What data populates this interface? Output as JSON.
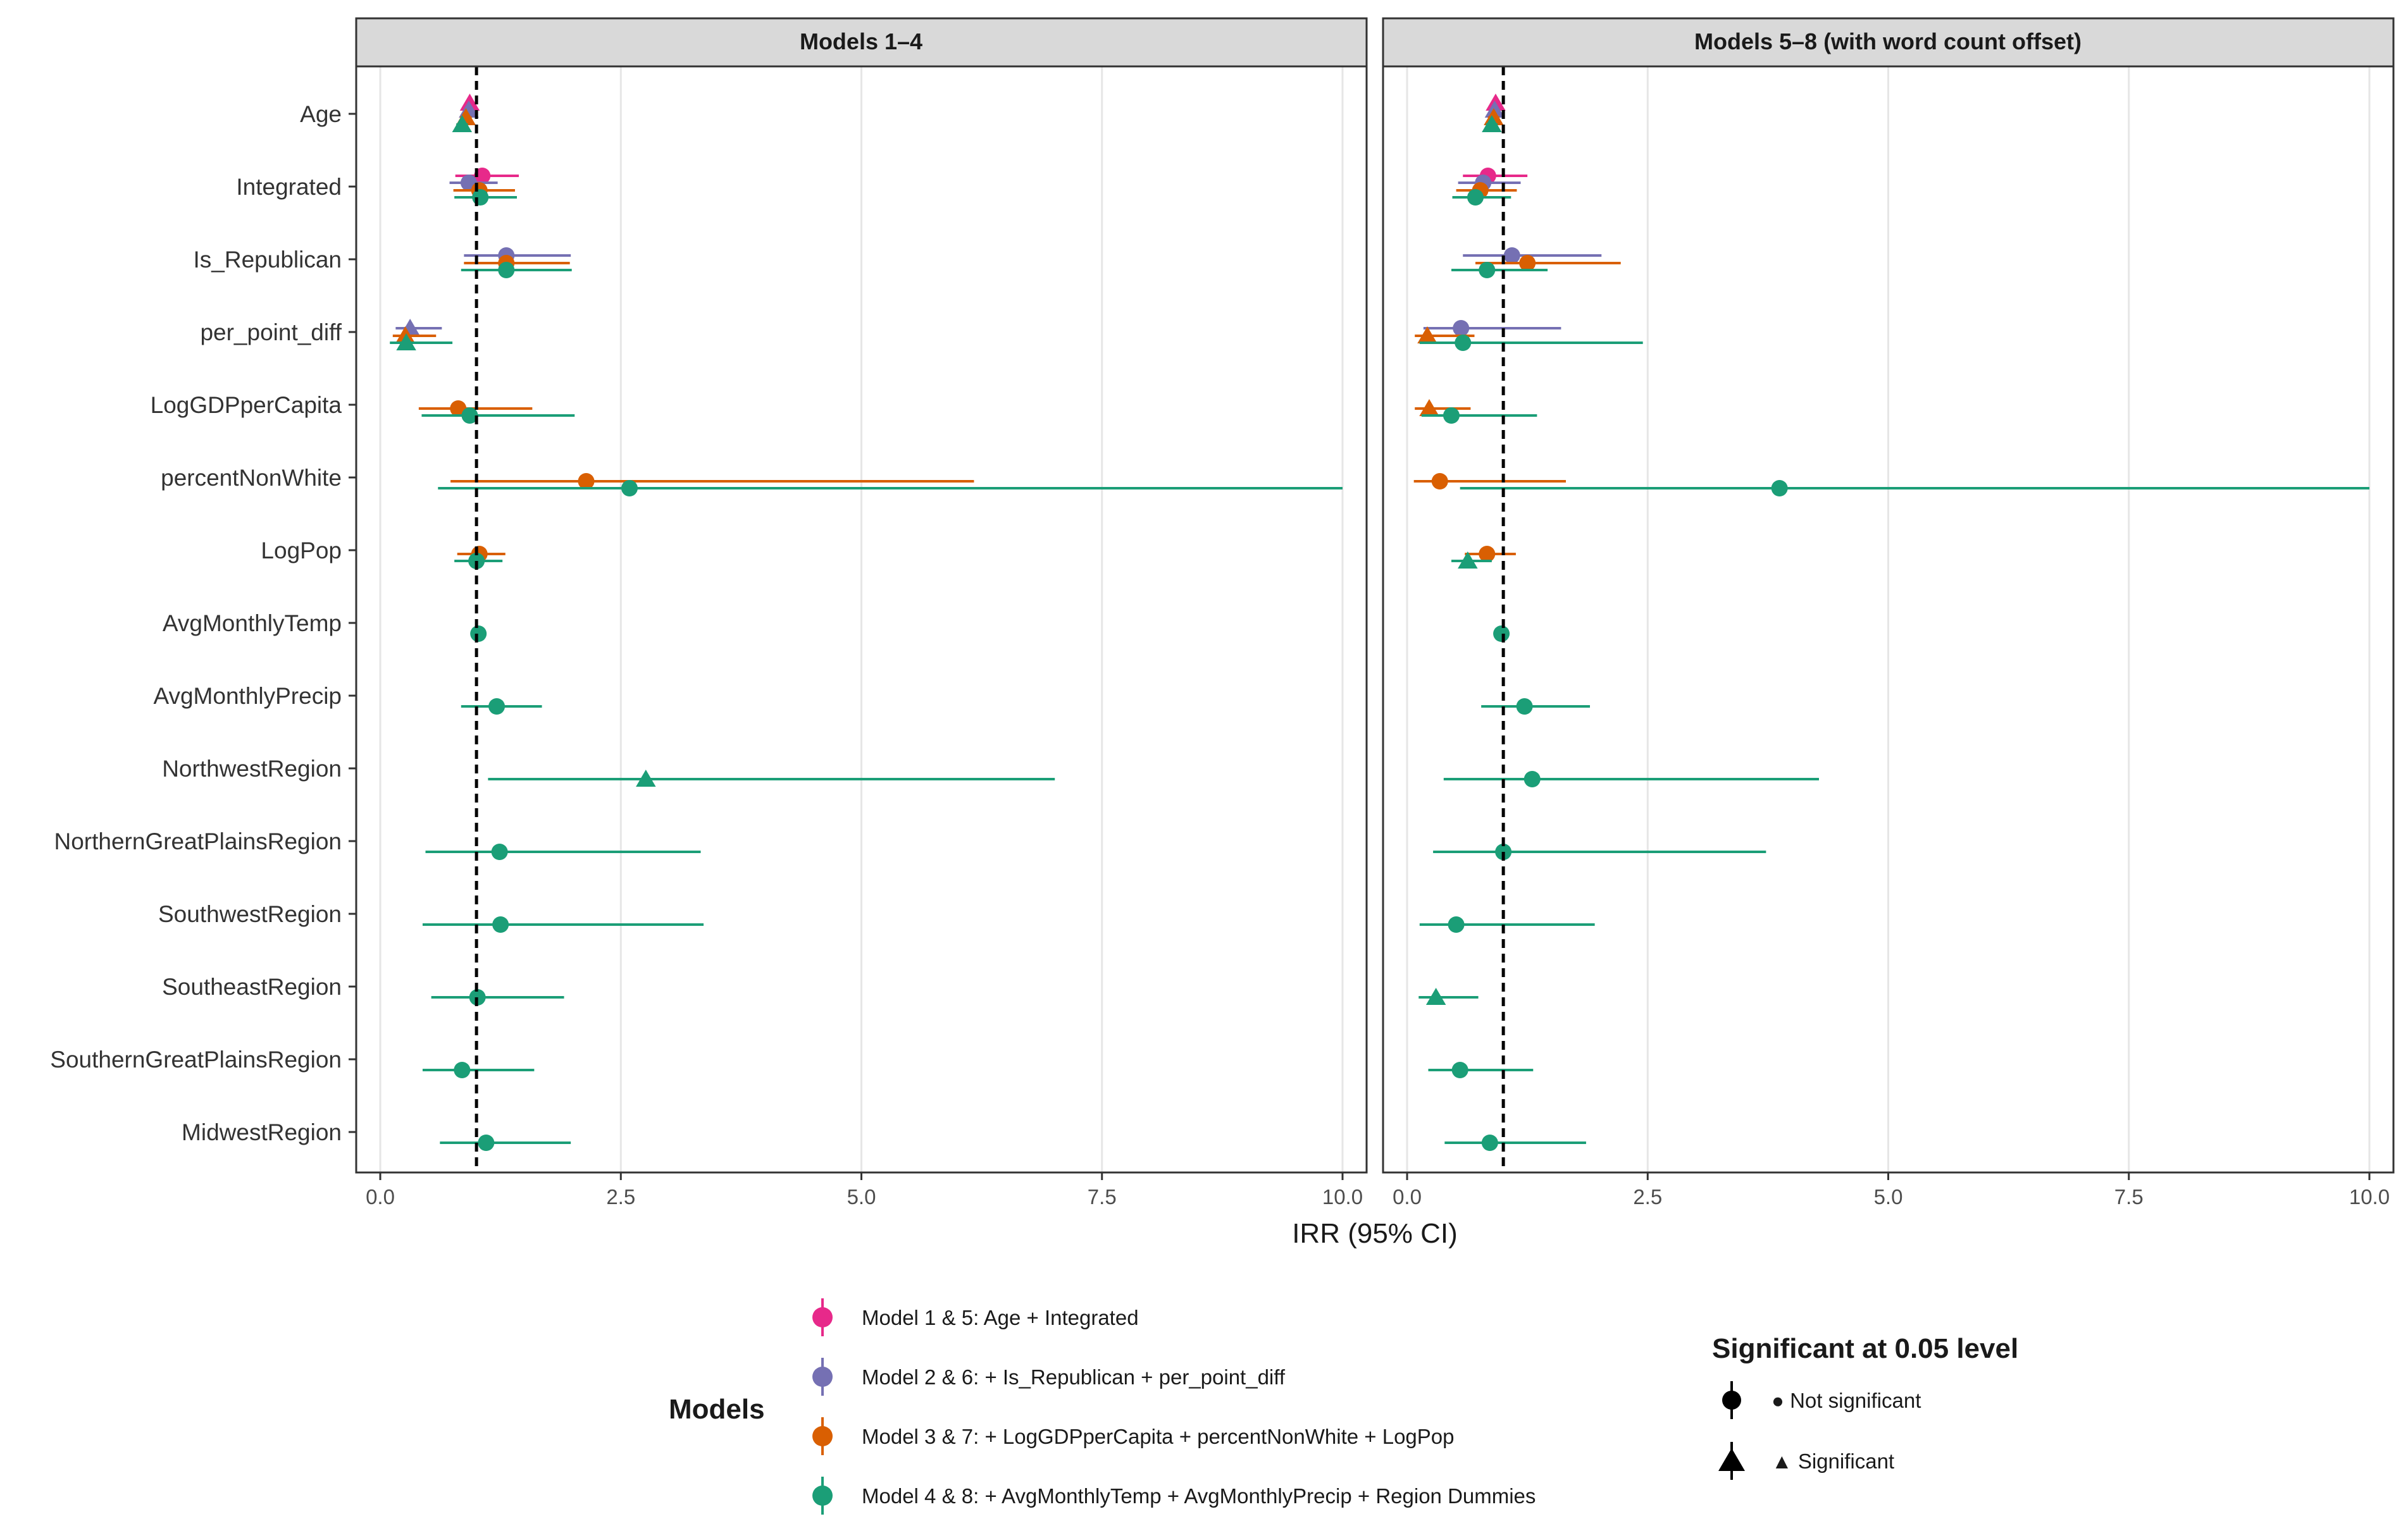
{
  "chart_data": {
    "type": "forest",
    "xlabel": "IRR (95% CI)",
    "xlim": [
      -0.25,
      10.25
    ],
    "x_ticks": [
      0.0,
      2.5,
      5.0,
      7.5,
      10.0
    ],
    "x_tick_labels": [
      "0.0",
      "2.5",
      "5.0",
      "7.5",
      "10.0"
    ],
    "reference_line": 1.0,
    "grid": "vertical major lines",
    "categories": [
      "Age",
      "Integrated",
      "Is_Republican",
      "per_point_diff",
      "LogGDPperCapita",
      "percentNonWhite",
      "LogPop",
      "AvgMonthlyTemp",
      "AvgMonthlyPrecip",
      "NorthwestRegion",
      "NorthernGreatPlainsRegion",
      "SouthwestRegion",
      "SoutheastRegion",
      "SouthernGreatPlainsRegion",
      "MidwestRegion"
    ],
    "facets": [
      {
        "title": "Models 1–4",
        "points": [
          {
            "var": "Age",
            "model": 0,
            "est": 0.93,
            "lo": 0.88,
            "hi": 0.98,
            "sig": true
          },
          {
            "var": "Age",
            "model": 1,
            "est": 0.92,
            "lo": 0.87,
            "hi": 0.97,
            "sig": true
          },
          {
            "var": "Age",
            "model": 2,
            "est": 0.89,
            "lo": 0.83,
            "hi": 0.95,
            "sig": true
          },
          {
            "var": "Age",
            "model": 3,
            "est": 0.85,
            "lo": 0.79,
            "hi": 0.91,
            "sig": true
          },
          {
            "var": "Integrated",
            "model": 0,
            "est": 1.06,
            "lo": 0.78,
            "hi": 1.44,
            "sig": false
          },
          {
            "var": "Integrated",
            "model": 1,
            "est": 0.92,
            "lo": 0.72,
            "hi": 1.22,
            "sig": false
          },
          {
            "var": "Integrated",
            "model": 2,
            "est": 1.03,
            "lo": 0.76,
            "hi": 1.4,
            "sig": false
          },
          {
            "var": "Integrated",
            "model": 3,
            "est": 1.04,
            "lo": 0.77,
            "hi": 1.42,
            "sig": false
          },
          {
            "var": "Is_Republican",
            "model": 1,
            "est": 1.31,
            "lo": 0.87,
            "hi": 1.98,
            "sig": false
          },
          {
            "var": "Is_Republican",
            "model": 2,
            "est": 1.31,
            "lo": 0.87,
            "hi": 1.97,
            "sig": false
          },
          {
            "var": "Is_Republican",
            "model": 3,
            "est": 1.31,
            "lo": 0.84,
            "hi": 1.99,
            "sig": false
          },
          {
            "var": "per_point_diff",
            "model": 1,
            "est": 0.31,
            "lo": 0.16,
            "hi": 0.64,
            "sig": true
          },
          {
            "var": "per_point_diff",
            "model": 2,
            "est": 0.26,
            "lo": 0.13,
            "hi": 0.58,
            "sig": true
          },
          {
            "var": "per_point_diff",
            "model": 3,
            "est": 0.27,
            "lo": 0.1,
            "hi": 0.75,
            "sig": true
          },
          {
            "var": "LogGDPperCapita",
            "model": 2,
            "est": 0.81,
            "lo": 0.4,
            "hi": 1.58,
            "sig": false
          },
          {
            "var": "LogGDPperCapita",
            "model": 3,
            "est": 0.93,
            "lo": 0.43,
            "hi": 2.02,
            "sig": false
          },
          {
            "var": "percentNonWhite",
            "model": 2,
            "est": 2.14,
            "lo": 0.73,
            "hi": 6.17,
            "sig": false
          },
          {
            "var": "percentNonWhite",
            "model": 3,
            "est": 2.59,
            "lo": 0.6,
            "hi": 10.0,
            "sig": false
          },
          {
            "var": "LogPop",
            "model": 2,
            "est": 1.03,
            "lo": 0.8,
            "hi": 1.3,
            "sig": false
          },
          {
            "var": "LogPop",
            "model": 3,
            "est": 1.0,
            "lo": 0.77,
            "hi": 1.27,
            "sig": false
          },
          {
            "var": "AvgMonthlyTemp",
            "model": 3,
            "est": 1.02,
            "lo": 0.96,
            "hi": 1.08,
            "sig": false
          },
          {
            "var": "AvgMonthlyPrecip",
            "model": 3,
            "est": 1.21,
            "lo": 0.84,
            "hi": 1.68,
            "sig": false
          },
          {
            "var": "NorthwestRegion",
            "model": 3,
            "est": 2.76,
            "lo": 1.12,
            "hi": 7.01,
            "sig": true
          },
          {
            "var": "NorthernGreatPlainsRegion",
            "model": 3,
            "est": 1.24,
            "lo": 0.47,
            "hi": 3.33,
            "sig": false
          },
          {
            "var": "SouthwestRegion",
            "model": 3,
            "est": 1.25,
            "lo": 0.44,
            "hi": 3.36,
            "sig": false
          },
          {
            "var": "SoutheastRegion",
            "model": 3,
            "est": 1.01,
            "lo": 0.53,
            "hi": 1.91,
            "sig": false
          },
          {
            "var": "SouthernGreatPlainsRegion",
            "model": 3,
            "est": 0.85,
            "lo": 0.44,
            "hi": 1.6,
            "sig": false
          },
          {
            "var": "MidwestRegion",
            "model": 3,
            "est": 1.1,
            "lo": 0.62,
            "hi": 1.98,
            "sig": false
          }
        ]
      },
      {
        "title": "Models 5–8 (with word count offset)",
        "points": [
          {
            "var": "Age",
            "model": 0,
            "est": 0.92,
            "lo": 0.87,
            "hi": 0.97,
            "sig": true
          },
          {
            "var": "Age",
            "model": 1,
            "est": 0.91,
            "lo": 0.86,
            "hi": 0.96,
            "sig": true
          },
          {
            "var": "Age",
            "model": 2,
            "est": 0.9,
            "lo": 0.84,
            "hi": 0.96,
            "sig": true
          },
          {
            "var": "Age",
            "model": 3,
            "est": 0.88,
            "lo": 0.82,
            "hi": 0.94,
            "sig": true
          },
          {
            "var": "Integrated",
            "model": 0,
            "est": 0.84,
            "lo": 0.58,
            "hi": 1.25,
            "sig": false
          },
          {
            "var": "Integrated",
            "model": 1,
            "est": 0.79,
            "lo": 0.53,
            "hi": 1.18,
            "sig": false
          },
          {
            "var": "Integrated",
            "model": 2,
            "est": 0.76,
            "lo": 0.51,
            "hi": 1.14,
            "sig": false
          },
          {
            "var": "Integrated",
            "model": 3,
            "est": 0.71,
            "lo": 0.47,
            "hi": 1.08,
            "sig": false
          },
          {
            "var": "Is_Republican",
            "model": 1,
            "est": 1.09,
            "lo": 0.58,
            "hi": 2.02,
            "sig": false
          },
          {
            "var": "Is_Republican",
            "model": 2,
            "est": 1.25,
            "lo": 0.71,
            "hi": 2.22,
            "sig": false
          },
          {
            "var": "Is_Republican",
            "model": 3,
            "est": 0.83,
            "lo": 0.46,
            "hi": 1.46,
            "sig": false
          },
          {
            "var": "per_point_diff",
            "model": 1,
            "est": 0.56,
            "lo": 0.17,
            "hi": 1.6,
            "sig": false
          },
          {
            "var": "per_point_diff",
            "model": 2,
            "est": 0.21,
            "lo": 0.08,
            "hi": 0.7,
            "sig": true
          },
          {
            "var": "per_point_diff",
            "model": 3,
            "est": 0.58,
            "lo": 0.13,
            "hi": 2.45,
            "sig": false
          },
          {
            "var": "LogGDPperCapita",
            "model": 2,
            "est": 0.23,
            "lo": 0.08,
            "hi": 0.66,
            "sig": true
          },
          {
            "var": "LogGDPperCapita",
            "model": 3,
            "est": 0.46,
            "lo": 0.15,
            "hi": 1.35,
            "sig": false
          },
          {
            "var": "percentNonWhite",
            "model": 2,
            "est": 0.34,
            "lo": 0.07,
            "hi": 1.65,
            "sig": false
          },
          {
            "var": "percentNonWhite",
            "model": 3,
            "est": 3.87,
            "lo": 0.55,
            "hi": 10.0,
            "sig": false
          },
          {
            "var": "LogPop",
            "model": 2,
            "est": 0.83,
            "lo": 0.6,
            "hi": 1.13,
            "sig": false
          },
          {
            "var": "LogPop",
            "model": 3,
            "est": 0.63,
            "lo": 0.46,
            "hi": 0.88,
            "sig": true
          },
          {
            "var": "AvgMonthlyTemp",
            "model": 3,
            "est": 0.98,
            "lo": 0.92,
            "hi": 1.05,
            "sig": false
          },
          {
            "var": "AvgMonthlyPrecip",
            "model": 3,
            "est": 1.22,
            "lo": 0.77,
            "hi": 1.9,
            "sig": false
          },
          {
            "var": "NorthwestRegion",
            "model": 3,
            "est": 1.3,
            "lo": 0.38,
            "hi": 4.28,
            "sig": false
          },
          {
            "var": "NorthernGreatPlainsRegion",
            "model": 3,
            "est": 1.0,
            "lo": 0.27,
            "hi": 3.73,
            "sig": false
          },
          {
            "var": "SouthwestRegion",
            "model": 3,
            "est": 0.51,
            "lo": 0.13,
            "hi": 1.95,
            "sig": false
          },
          {
            "var": "SoutheastRegion",
            "model": 3,
            "est": 0.3,
            "lo": 0.12,
            "hi": 0.74,
            "sig": true
          },
          {
            "var": "SouthernGreatPlainsRegion",
            "model": 3,
            "est": 0.55,
            "lo": 0.22,
            "hi": 1.31,
            "sig": false
          },
          {
            "var": "MidwestRegion",
            "model": 3,
            "est": 0.86,
            "lo": 0.39,
            "hi": 1.86,
            "sig": false
          }
        ]
      }
    ],
    "models_legend": {
      "title": "Models",
      "items": [
        {
          "label": "Model 1 & 5: Age + Integrated",
          "color": "#e7298a"
        },
        {
          "label": "Model 2 & 6: + Is_Republican + per_point_diff",
          "color": "#7570b3"
        },
        {
          "label": "Model 3 & 7: + LogGDPperCapita + percentNonWhite + LogPop",
          "color": "#d95f02"
        },
        {
          "label": "Model 4 & 8: + AvgMonthlyTemp + AvgMonthlyPrecip + Region Dummies",
          "color": "#1b9e77"
        }
      ]
    },
    "significance_legend": {
      "title": "Significant at 0.05 level",
      "items": [
        {
          "label": "● Not significant",
          "shape": "circle"
        },
        {
          "label": "▲ Significant",
          "shape": "triangle"
        }
      ]
    }
  }
}
